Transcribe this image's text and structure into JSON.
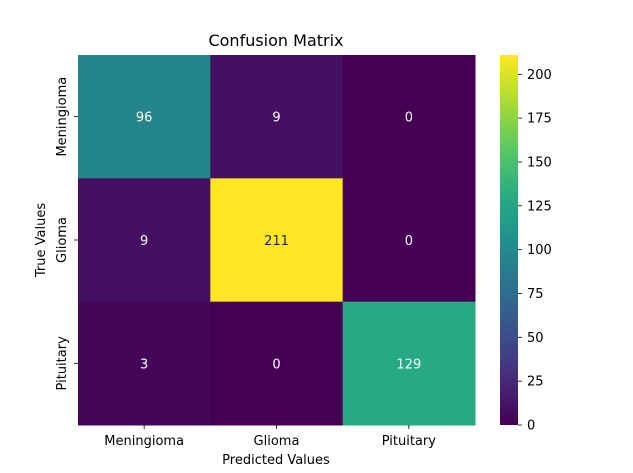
{
  "chart_data": {
    "type": "heatmap",
    "title": "Confusion Matrix",
    "xlabel": "Predicted Values",
    "ylabel": "True Values",
    "x_categories": [
      "Meningioma",
      "Glioma",
      "Pituitary"
    ],
    "y_categories": [
      "Meningioma",
      "Glioma",
      "Pituitary"
    ],
    "values": [
      [
        96,
        9,
        0
      ],
      [
        9,
        211,
        0
      ],
      [
        3,
        0,
        129
      ]
    ],
    "colormap": "viridis",
    "colorbar": {
      "min": 0,
      "max": 211,
      "ticks": [
        0,
        25,
        50,
        75,
        100,
        125,
        150,
        175,
        200
      ]
    },
    "grid": false
  }
}
